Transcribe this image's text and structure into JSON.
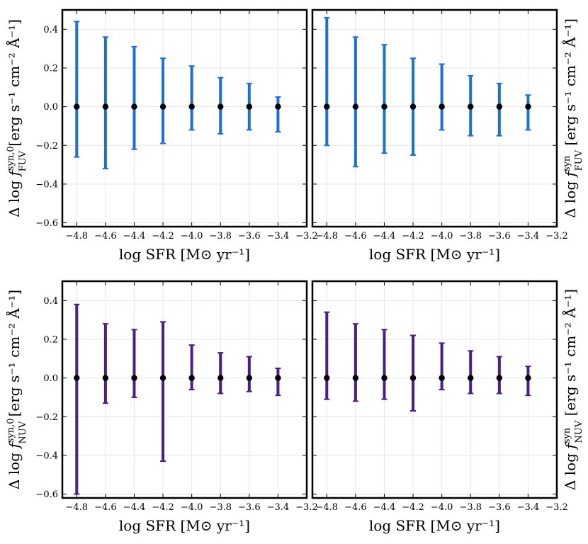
{
  "chart_data": [
    {
      "type": "errorbar",
      "panel": "top-left",
      "color": "#1f6fd1",
      "xlabel": "log SFR [M⊙ yr⁻¹]",
      "ylabel": {
        "delta": "Δ log ",
        "f": "f",
        "sup": "syn,0",
        "sub": "FUV",
        "units": " [erg s⁻¹ cm⁻² Å⁻¹]"
      },
      "ylabel_side": "left",
      "xlim": [
        -4.9,
        -3.2
      ],
      "ylim": [
        -0.62,
        0.5
      ],
      "xticks": [
        -4.8,
        -4.6,
        -4.4,
        -4.2,
        -4.0,
        -3.8,
        -3.6,
        -3.4,
        -3.2
      ],
      "xtick_labels": [
        "−4.8",
        "−4.6",
        "−4.4",
        "−4.2",
        "−4.0",
        "−3.8",
        "−3.6",
        "−3.4",
        "−3.2"
      ],
      "yticks": [
        -0.6,
        -0.4,
        -0.2,
        0.0,
        0.2,
        0.4
      ],
      "ytick_labels": [
        "−0.6",
        "−0.4",
        "−0.2",
        "0.0",
        "0.2",
        "0.4"
      ],
      "show_yticks": true,
      "grid": true,
      "x": [
        -4.8,
        -4.6,
        -4.4,
        -4.2,
        -4.0,
        -3.8,
        -3.6,
        -3.4
      ],
      "y": [
        0,
        0,
        0,
        0,
        0,
        0,
        0,
        0
      ],
      "y_upper": [
        0.44,
        0.36,
        0.31,
        0.25,
        0.21,
        0.15,
        0.12,
        0.05
      ],
      "y_lower": [
        -0.26,
        -0.32,
        -0.22,
        -0.19,
        -0.12,
        -0.14,
        -0.12,
        -0.13
      ]
    },
    {
      "type": "errorbar",
      "panel": "top-right",
      "color": "#1f6fd1",
      "xlabel": "log SFR [M⊙ yr⁻¹]",
      "ylabel": {
        "delta": "Δ log ",
        "f": "f",
        "sup": "syn",
        "sub": "FUV",
        "units": " [erg s⁻¹ cm⁻² Å⁻¹]"
      },
      "ylabel_side": "right",
      "xlim": [
        -4.9,
        -3.2
      ],
      "ylim": [
        -0.62,
        0.5
      ],
      "xticks": [
        -4.8,
        -4.6,
        -4.4,
        -4.2,
        -4.0,
        -3.8,
        -3.6,
        -3.4,
        -3.2
      ],
      "xtick_labels": [
        "−4.8",
        "−4.6",
        "−4.4",
        "−4.2",
        "−4.0",
        "−3.8",
        "−3.6",
        "−3.4",
        "−3.2"
      ],
      "yticks": [
        -0.6,
        -0.4,
        -0.2,
        0.0,
        0.2,
        0.4
      ],
      "ytick_labels": [],
      "show_yticks": false,
      "grid": true,
      "x": [
        -4.8,
        -4.6,
        -4.4,
        -4.2,
        -4.0,
        -3.8,
        -3.6,
        -3.4
      ],
      "y": [
        0,
        0,
        0,
        0,
        0,
        0,
        0,
        0
      ],
      "y_upper": [
        0.46,
        0.36,
        0.32,
        0.25,
        0.22,
        0.16,
        0.12,
        0.06
      ],
      "y_lower": [
        -0.2,
        -0.31,
        -0.24,
        -0.25,
        -0.12,
        -0.15,
        -0.15,
        -0.12
      ]
    },
    {
      "type": "errorbar",
      "panel": "bottom-left",
      "color": "#4b1d86",
      "xlabel": "log SFR [M⊙ yr⁻¹]",
      "ylabel": {
        "delta": "Δ log ",
        "f": "f",
        "sup": "syn,0",
        "sub": "NUV",
        "units": " [erg s⁻¹ cm⁻² Å⁻¹]"
      },
      "ylabel_side": "left",
      "xlim": [
        -4.9,
        -3.2
      ],
      "ylim": [
        -0.62,
        0.5
      ],
      "xticks": [
        -4.8,
        -4.6,
        -4.4,
        -4.2,
        -4.0,
        -3.8,
        -3.6,
        -3.4,
        -3.2
      ],
      "xtick_labels": [
        "−4.8",
        "−4.6",
        "−4.4",
        "−4.2",
        "−4.0",
        "−3.8",
        "−3.6",
        "−3.4",
        "−3.2"
      ],
      "yticks": [
        -0.6,
        -0.4,
        -0.2,
        0.0,
        0.2,
        0.4
      ],
      "ytick_labels": [
        "−0.6",
        "−0.4",
        "−0.2",
        "0.0",
        "0.2",
        "0.4"
      ],
      "show_yticks": true,
      "grid": true,
      "x": [
        -4.8,
        -4.6,
        -4.4,
        -4.2,
        -4.0,
        -3.8,
        -3.6,
        -3.4
      ],
      "y": [
        0,
        0,
        0,
        0,
        0,
        0,
        0,
        0
      ],
      "y_upper": [
        0.38,
        0.28,
        0.25,
        0.29,
        0.17,
        0.13,
        0.11,
        0.05
      ],
      "y_lower": [
        -0.6,
        -0.13,
        -0.1,
        -0.43,
        -0.06,
        -0.08,
        -0.07,
        -0.09
      ]
    },
    {
      "type": "errorbar",
      "panel": "bottom-right",
      "color": "#4b1d86",
      "xlabel": "log SFR [M⊙ yr⁻¹]",
      "ylabel": {
        "delta": "Δ log ",
        "f": "f",
        "sup": "syn",
        "sub": "NUV",
        "units": " [erg s⁻¹ cm⁻² Å⁻¹]"
      },
      "ylabel_side": "right",
      "xlim": [
        -4.9,
        -3.2
      ],
      "ylim": [
        -0.62,
        0.5
      ],
      "xticks": [
        -4.8,
        -4.6,
        -4.4,
        -4.2,
        -4.0,
        -3.8,
        -3.6,
        -3.4,
        -3.2
      ],
      "xtick_labels": [
        "−4.8",
        "−4.6",
        "−4.4",
        "−4.2",
        "−4.0",
        "−3.8",
        "−3.6",
        "−3.4",
        "−3.2"
      ],
      "yticks": [
        -0.6,
        -0.4,
        -0.2,
        0.0,
        0.2,
        0.4
      ],
      "ytick_labels": [],
      "show_yticks": false,
      "grid": true,
      "x": [
        -4.8,
        -4.6,
        -4.4,
        -4.2,
        -4.0,
        -3.8,
        -3.6,
        -3.4
      ],
      "y": [
        0,
        0,
        0,
        0,
        0,
        0,
        0,
        0
      ],
      "y_upper": [
        0.34,
        0.28,
        0.25,
        0.22,
        0.18,
        0.14,
        0.11,
        0.06
      ],
      "y_lower": [
        -0.11,
        -0.12,
        -0.11,
        -0.17,
        -0.06,
        -0.08,
        -0.08,
        -0.09
      ]
    }
  ],
  "colors": {
    "point": "#000000",
    "grid": "#e6e6e6",
    "frame": "#000000"
  }
}
